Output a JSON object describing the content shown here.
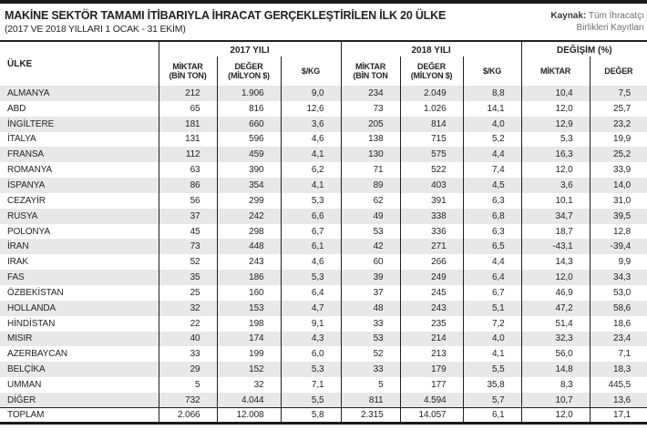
{
  "colors": {
    "top_bar": "#1a1a1a",
    "row_stripe": "#e8e8e8",
    "rule": "#231f20",
    "source_text": "#6d6e71"
  },
  "header": {
    "title": "MAKİNE SEKTÖR TAMAMI İTİBARIYLA İHRACAT GERÇEKLEŞTİRİLEN İLK 20 ÜLKE",
    "subtitle": "(2017 VE 2018 YILLARI 1 OCAK - 31 EKİM)",
    "source_label": "Kaynak:",
    "source_line1": "Tüm İhracatçı",
    "source_line2": "Birlikleri Kayıtları"
  },
  "chart_data": {
    "type": "table",
    "title": "MAKİNE SEKTÖR TAMAMI İTİBARIYLA İHRACAT GERÇEKLEŞTİRİLEN İLK 20 ÜLKE",
    "subtitle": "(2017 VE 2018 YILLARI 1 OCAK - 31 EKİM)",
    "source": "Kaynak: Tüm İhracatçı Birlikleri Kayıtları",
    "country_column": "ÜLKE",
    "column_groups": [
      "2017 YILI",
      "2018 YILI",
      "DEĞİŞİM (%)"
    ],
    "subcolumns": [
      {
        "l1": "MİKTAR",
        "l2": "(BİN TON)"
      },
      {
        "l1": "DEĞER",
        "l2": "(MİLYON $)"
      },
      {
        "l1": "$/KG",
        "l2": ""
      },
      {
        "l1": "MİKTAR",
        "l2": "(BİN TON"
      },
      {
        "l1": "DEĞER",
        "l2": "(MİLYON $)"
      },
      {
        "l1": "$/KG",
        "l2": ""
      },
      {
        "l1": "MİKTAR",
        "l2": ""
      },
      {
        "l1": "DEĞER",
        "l2": ""
      }
    ],
    "rows": [
      {
        "country": "ALMANYA",
        "values": [
          "212",
          "1.906",
          "9,0",
          "234",
          "2.049",
          "8,8",
          "10,4",
          "7,5"
        ]
      },
      {
        "country": "ABD",
        "values": [
          "65",
          "816",
          "12,6",
          "73",
          "1.026",
          "14,1",
          "12,0",
          "25,7"
        ]
      },
      {
        "country": "İNGİLTERE",
        "values": [
          "181",
          "660",
          "3,6",
          "205",
          "814",
          "4,0",
          "12,9",
          "23,2"
        ]
      },
      {
        "country": "İTALYA",
        "values": [
          "131",
          "596",
          "4,6",
          "138",
          "715",
          "5,2",
          "5,3",
          "19,9"
        ]
      },
      {
        "country": "FRANSA",
        "values": [
          "112",
          "459",
          "4,1",
          "130",
          "575",
          "4,4",
          "16,3",
          "25,2"
        ]
      },
      {
        "country": "ROMANYA",
        "values": [
          "63",
          "390",
          "6,2",
          "71",
          "522",
          "7,4",
          "12,0",
          "33,9"
        ]
      },
      {
        "country": "İSPANYA",
        "values": [
          "86",
          "354",
          "4,1",
          "89",
          "403",
          "4,5",
          "3,6",
          "14,0"
        ]
      },
      {
        "country": "CEZAYİR",
        "values": [
          "56",
          "299",
          "5,3",
          "62",
          "391",
          "6,3",
          "10,1",
          "31,0"
        ]
      },
      {
        "country": "RUSYA",
        "values": [
          "37",
          "242",
          "6,6",
          "49",
          "338",
          "6,8",
          "34,7",
          "39,5"
        ]
      },
      {
        "country": "POLONYA",
        "values": [
          "45",
          "298",
          "6,7",
          "53",
          "336",
          "6,3",
          "18,7",
          "12,8"
        ]
      },
      {
        "country": "İRAN",
        "values": [
          "73",
          "448",
          "6,1",
          "42",
          "271",
          "6,5",
          "-43,1",
          "-39,4"
        ]
      },
      {
        "country": "IRAK",
        "values": [
          "52",
          "243",
          "4,6",
          "60",
          "266",
          "4,4",
          "14,3",
          "9,9"
        ]
      },
      {
        "country": "FAS",
        "values": [
          "35",
          "186",
          "5,3",
          "39",
          "249",
          "6,4",
          "12,0",
          "34,3"
        ]
      },
      {
        "country": "ÖZBEKİSTAN",
        "values": [
          "25",
          "160",
          "6,4",
          "37",
          "245",
          "6,7",
          "46,9",
          "53,0"
        ]
      },
      {
        "country": "HOLLANDA",
        "values": [
          "32",
          "153",
          "4,7",
          "48",
          "243",
          "5,1",
          "47,2",
          "58,6"
        ]
      },
      {
        "country": "HİNDİSTAN",
        "values": [
          "22",
          "198",
          "9,1",
          "33",
          "235",
          "7,2",
          "51,4",
          "18,6"
        ]
      },
      {
        "country": "MISIR",
        "values": [
          "40",
          "174",
          "4,3",
          "53",
          "214",
          "4,0",
          "32,3",
          "23,4"
        ]
      },
      {
        "country": "AZERBAYCAN",
        "values": [
          "33",
          "199",
          "6,0",
          "52",
          "213",
          "4,1",
          "56,0",
          "7,1"
        ]
      },
      {
        "country": "BELÇİKA",
        "values": [
          "29",
          "152",
          "5,3",
          "33",
          "179",
          "5,5",
          "14,8",
          "18,3"
        ]
      },
      {
        "country": "UMMAN",
        "values": [
          "5",
          "32",
          "7,1",
          "5",
          "177",
          "35,8",
          "8,3",
          "445,5"
        ]
      },
      {
        "country": "DİĞER",
        "values": [
          "732",
          "4.044",
          "5,5",
          "811",
          "4.594",
          "5,7",
          "10,7",
          "13,6"
        ]
      },
      {
        "country": "TOPLAM",
        "values": [
          "2.066",
          "12.008",
          "5,8",
          "2.315",
          "14.057",
          "6,1",
          "12,0",
          "17,1"
        ]
      }
    ]
  }
}
